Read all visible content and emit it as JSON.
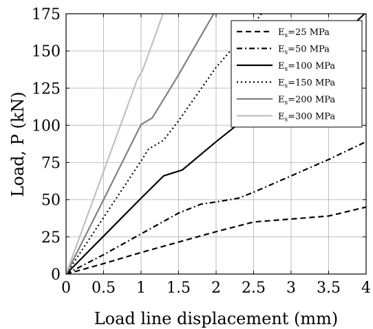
{
  "chart_data": {
    "type": "line",
    "xlabel": "Load line displacement (mm)",
    "ylabel": "Load, P (kN)",
    "xlim": [
      0,
      4
    ],
    "ylim": [
      0,
      175
    ],
    "xticks": [
      0,
      0.5,
      1,
      1.5,
      2,
      2.5,
      3,
      3.5,
      4
    ],
    "xtick_labels": [
      "0",
      "0.5",
      "1",
      "1.5",
      "2",
      "2.5",
      "3",
      "3.5",
      "4"
    ],
    "yticks": [
      0,
      25,
      50,
      75,
      100,
      125,
      150,
      175
    ],
    "ytick_labels": [
      "0",
      "25",
      "50",
      "75",
      "100",
      "125",
      "150",
      "175"
    ],
    "grid": true,
    "legend_position": "top-right",
    "series": [
      {
        "name": "E_s=25 MPa",
        "label_main": "E",
        "label_sub": "s",
        "label_rest": "=25 MPa",
        "style": "dashed",
        "color": "#000000",
        "x": [
          0,
          0.5,
          1.0,
          1.5,
          2.0,
          2.5,
          3.0,
          3.5,
          4.0
        ],
        "y": [
          0,
          7,
          14.5,
          21.5,
          28.5,
          35,
          37,
          39,
          45
        ]
      },
      {
        "name": "E_s=50 MPa",
        "label_main": "E",
        "label_sub": "s",
        "label_rest": "=50 MPa",
        "style": "dashdot",
        "color": "#000000",
        "x": [
          0,
          0.5,
          1.0,
          1.5,
          1.8,
          2.0,
          2.3,
          2.5,
          3.0,
          3.5,
          4.0
        ],
        "y": [
          0,
          13,
          27,
          41,
          47,
          48.5,
          51,
          55,
          66,
          77,
          89
        ]
      },
      {
        "name": "E_s=100 MPa",
        "label_main": "E",
        "label_sub": "s",
        "label_rest": "=100 MPa",
        "style": "solid",
        "color": "#000000",
        "x": [
          0,
          0.5,
          1.0,
          1.3,
          1.55,
          2.0,
          2.5,
          3.0,
          3.5,
          4.0
        ],
        "y": [
          0,
          25.5,
          51,
          66,
          70,
          89,
          109,
          131,
          152,
          176
        ]
      },
      {
        "name": "E_s=150 MPa",
        "label_main": "E",
        "label_sub": "s",
        "label_rest": "=150 MPa",
        "style": "dotted",
        "color": "#000000",
        "x": [
          0,
          0.5,
          1.0,
          1.1,
          1.3,
          1.5,
          2.0,
          2.5,
          2.62
        ],
        "y": [
          0,
          38,
          76,
          84,
          90,
          103,
          139,
          168,
          176
        ]
      },
      {
        "name": "E_s=200 MPa",
        "label_main": "E",
        "label_sub": "s",
        "label_rest": "=200 MPa",
        "style": "solid",
        "color": "#808080",
        "x": [
          0,
          0.5,
          1.0,
          1.15,
          1.5,
          1.98
        ],
        "y": [
          0,
          50,
          100.5,
          105,
          134,
          176
        ]
      },
      {
        "name": "E_s=300 MPa",
        "label_main": "E",
        "label_sub": "s",
        "label_rest": "=300 MPa",
        "style": "solid",
        "color": "#c0c0c0",
        "x": [
          0,
          0.5,
          0.95,
          1.02,
          1.3
        ],
        "y": [
          0,
          69,
          131,
          137,
          176
        ]
      }
    ]
  }
}
